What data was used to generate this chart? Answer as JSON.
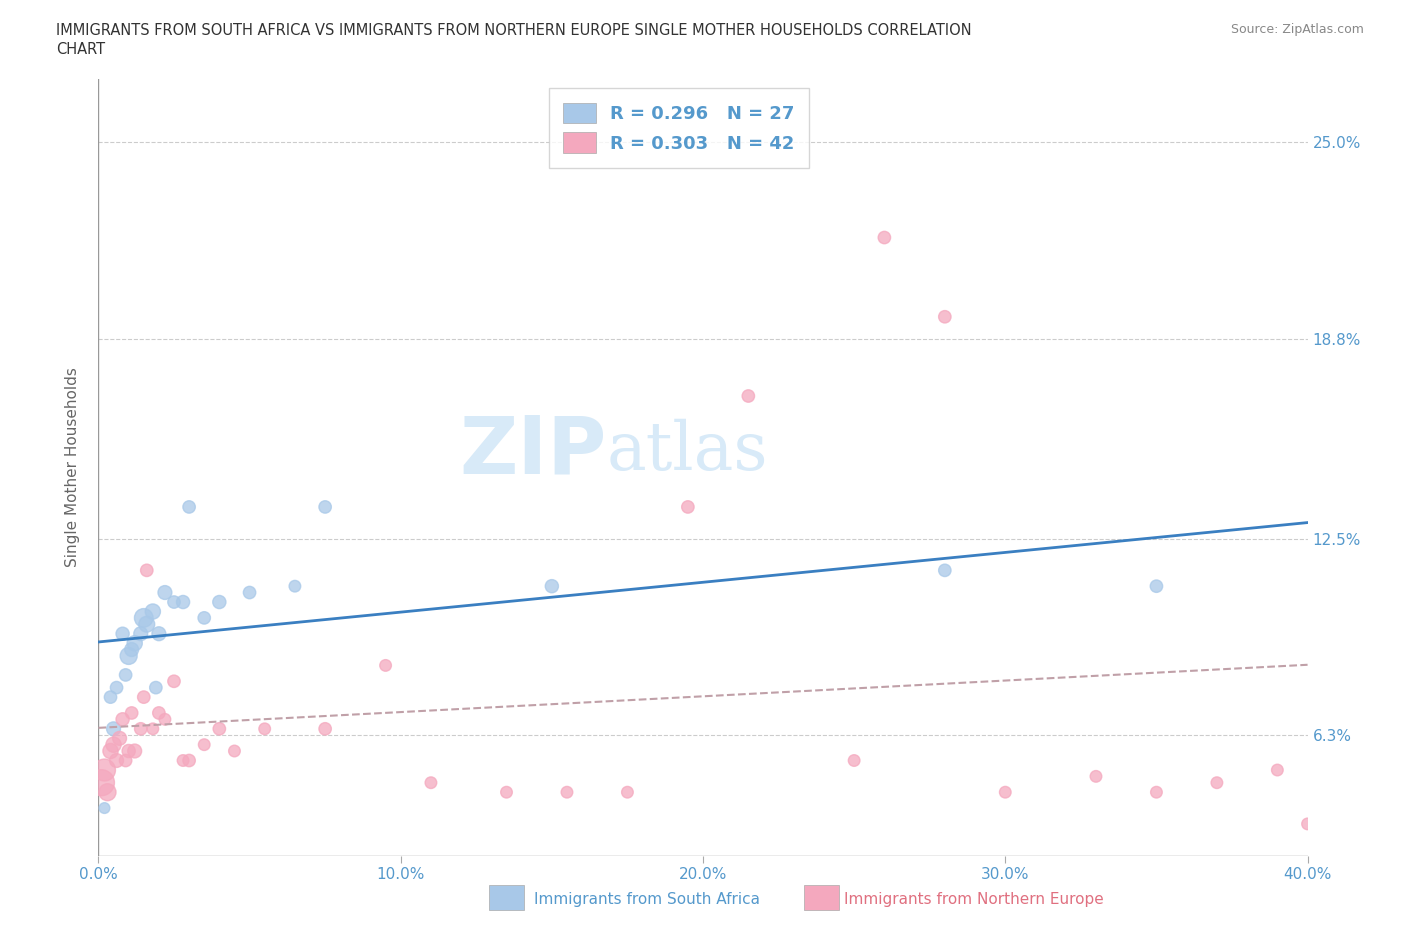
{
  "title_line1": "IMMIGRANTS FROM SOUTH AFRICA VS IMMIGRANTS FROM NORTHERN EUROPE SINGLE MOTHER HOUSEHOLDS CORRELATION",
  "title_line2": "CHART",
  "source": "Source: ZipAtlas.com",
  "xlabel_blue": "Immigrants from South Africa",
  "xlabel_pink": "Immigrants from Northern Europe",
  "ylabel": "Single Mother Households",
  "xlim": [
    0.0,
    40.0
  ],
  "ylim": [
    2.5,
    27.0
  ],
  "yticks": [
    6.3,
    12.5,
    18.8,
    25.0
  ],
  "xticks": [
    0.0,
    10.0,
    20.0,
    30.0,
    40.0
  ],
  "xtick_labels": [
    "0.0%",
    "10.0%",
    "20.0%",
    "30.0%",
    "40.0%"
  ],
  "ytick_labels": [
    "6.3%",
    "12.5%",
    "18.8%",
    "25.0%"
  ],
  "blue_R": 0.296,
  "blue_N": 27,
  "pink_R": 0.303,
  "pink_N": 42,
  "blue_color": "#a8c8e8",
  "pink_color": "#f4a8be",
  "blue_line_color": "#3a7fc1",
  "pink_line_color": "#e07080",
  "tick_label_color": "#5599cc",
  "watermark_color": "#d8eaf8",
  "blue_scatter_x": [
    0.2,
    0.4,
    0.5,
    0.6,
    0.8,
    0.9,
    1.0,
    1.1,
    1.2,
    1.4,
    1.5,
    1.6,
    1.8,
    1.9,
    2.0,
    2.2,
    2.5,
    2.8,
    3.0,
    3.5,
    4.0,
    5.0,
    6.5,
    7.5,
    15.0,
    28.0,
    35.0
  ],
  "blue_scatter_y": [
    4.0,
    7.5,
    6.5,
    7.8,
    9.5,
    8.2,
    8.8,
    9.0,
    9.2,
    9.5,
    10.0,
    9.8,
    10.2,
    7.8,
    9.5,
    10.8,
    10.5,
    10.5,
    13.5,
    10.0,
    10.5,
    10.8,
    11.0,
    13.5,
    11.0,
    11.5,
    11.0
  ],
  "blue_scatter_size": [
    60,
    80,
    100,
    80,
    90,
    80,
    150,
    100,
    120,
    100,
    180,
    130,
    120,
    80,
    100,
    100,
    80,
    90,
    80,
    80,
    90,
    80,
    70,
    80,
    90,
    80,
    80
  ],
  "pink_scatter_x": [
    0.1,
    0.2,
    0.3,
    0.4,
    0.5,
    0.6,
    0.7,
    0.8,
    0.9,
    1.0,
    1.1,
    1.2,
    1.4,
    1.5,
    1.6,
    1.8,
    2.0,
    2.2,
    2.5,
    2.8,
    3.0,
    3.5,
    4.0,
    4.5,
    5.5,
    7.5,
    9.5,
    11.0,
    13.5,
    15.5,
    17.5,
    19.5,
    21.5,
    26.0,
    28.0,
    30.0,
    33.0,
    35.0,
    37.0,
    39.0,
    40.0,
    25.0
  ],
  "pink_scatter_y": [
    4.8,
    5.2,
    4.5,
    5.8,
    6.0,
    5.5,
    6.2,
    6.8,
    5.5,
    5.8,
    7.0,
    5.8,
    6.5,
    7.5,
    11.5,
    6.5,
    7.0,
    6.8,
    8.0,
    5.5,
    5.5,
    6.0,
    6.5,
    5.8,
    6.5,
    6.5,
    8.5,
    4.8,
    4.5,
    4.5,
    4.5,
    13.5,
    17.0,
    22.0,
    19.5,
    4.5,
    5.0,
    4.5,
    4.8,
    5.2,
    3.5,
    5.5
  ],
  "pink_scatter_size": [
    350,
    250,
    150,
    120,
    120,
    100,
    100,
    90,
    80,
    90,
    80,
    100,
    80,
    80,
    80,
    70,
    80,
    70,
    80,
    70,
    80,
    70,
    80,
    70,
    70,
    80,
    70,
    70,
    70,
    70,
    70,
    80,
    80,
    80,
    80,
    70,
    70,
    70,
    70,
    70,
    70,
    70
  ]
}
